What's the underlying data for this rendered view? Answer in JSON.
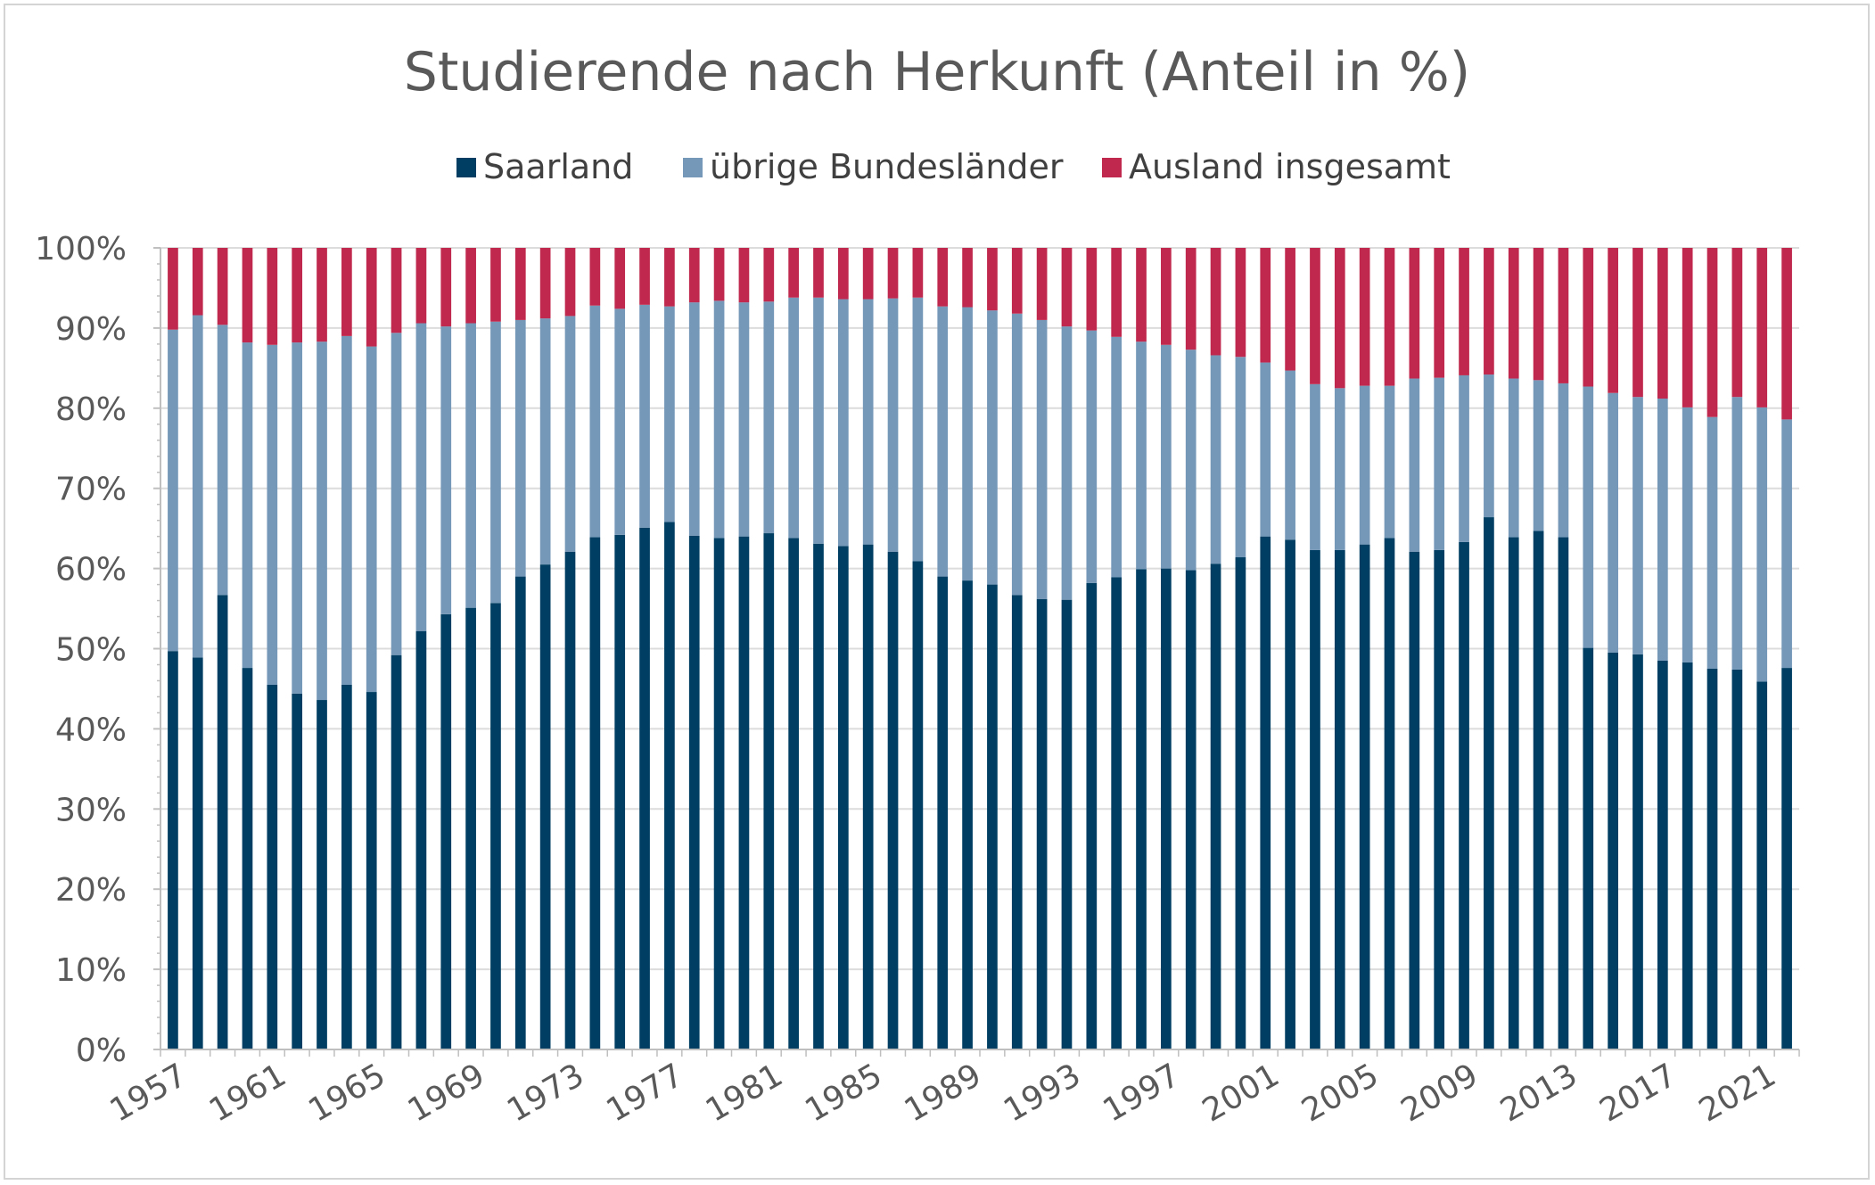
{
  "chart_data": {
    "type": "bar",
    "stacked": true,
    "title": "Studierende nach Herkunft (Anteil in %)",
    "xlabel": "",
    "ylabel": "",
    "ylim": [
      0,
      100
    ],
    "yticks": [
      "0%",
      "10%",
      "20%",
      "30%",
      "40%",
      "50%",
      "60%",
      "70%",
      "80%",
      "90%",
      "100%"
    ],
    "x_tick_labels": [
      "1957",
      "1961",
      "1965",
      "1969",
      "1973",
      "1977",
      "1981",
      "1985",
      "1989",
      "1993",
      "1997",
      "2001",
      "2005",
      "2009",
      "2013",
      "2017",
      "2021"
    ],
    "legend_position": "top",
    "categories": [
      "1957",
      "1958",
      "1959",
      "1960",
      "1961",
      "1962",
      "1963",
      "1964",
      "1965",
      "1966",
      "1967",
      "1968",
      "1969",
      "1970",
      "1971",
      "1972",
      "1973",
      "1974",
      "1975",
      "1976",
      "1977",
      "1978",
      "1979",
      "1980",
      "1981",
      "1982",
      "1983",
      "1984",
      "1985",
      "1986",
      "1987",
      "1988",
      "1989",
      "1990",
      "1991",
      "1992",
      "1993",
      "1994",
      "1995",
      "1996",
      "1997",
      "1998",
      "1999",
      "2000",
      "2001",
      "2002",
      "2003",
      "2004",
      "2005",
      "2006",
      "2007",
      "2008",
      "2009",
      "2010",
      "2011",
      "2012",
      "2013",
      "2014",
      "2015",
      "2016",
      "2017",
      "2018",
      "2019",
      "2020",
      "2021",
      "2022"
    ],
    "series": [
      {
        "name": "Saarland",
        "color": "#003f63",
        "values": [
          49.7,
          48.9,
          56.7,
          47.6,
          45.5,
          44.4,
          43.6,
          45.5,
          44.6,
          49.2,
          52.2,
          54.3,
          55.1,
          55.7,
          59.0,
          60.5,
          62.1,
          63.9,
          64.2,
          65.1,
          65.8,
          64.1,
          63.8,
          64.0,
          64.4,
          63.8,
          63.1,
          62.8,
          63.0,
          62.1,
          60.9,
          59.0,
          58.5,
          58.0,
          56.7,
          56.2,
          56.1,
          58.2,
          58.9,
          59.9,
          60.0,
          59.8,
          60.6,
          61.4,
          64.0,
          63.6,
          62.3,
          62.3,
          63.0,
          63.8,
          62.1,
          62.3,
          63.3,
          66.4,
          63.9,
          64.7,
          63.9,
          50.1,
          49.5,
          49.3,
          48.5,
          48.3,
          47.5,
          47.4,
          45.9,
          47.6
        ]
      },
      {
        "name": "übrige Bundesländer",
        "color": "#7598b9",
        "values": [
          40.1,
          42.7,
          33.7,
          40.6,
          42.4,
          43.8,
          44.7,
          43.5,
          43.1,
          40.2,
          38.4,
          35.9,
          35.5,
          35.1,
          32.0,
          30.7,
          29.4,
          28.9,
          28.2,
          27.8,
          26.9,
          29.1,
          29.6,
          29.2,
          28.9,
          30.0,
          30.7,
          30.8,
          30.6,
          31.6,
          32.9,
          33.7,
          34.1,
          34.2,
          35.1,
          34.8,
          34.1,
          31.5,
          30.0,
          28.4,
          27.9,
          27.5,
          26.0,
          25.0,
          21.7,
          21.1,
          20.7,
          20.2,
          19.8,
          19.0,
          21.6,
          21.5,
          20.8,
          17.8,
          19.8,
          18.8,
          19.2,
          32.6,
          32.4,
          32.1,
          32.7,
          31.8,
          31.4,
          34.0,
          34.2,
          31.0
        ]
      },
      {
        "name": "Ausland insgesamt",
        "color": "#c0294d",
        "values": [
          10.2,
          8.4,
          9.6,
          11.8,
          12.1,
          11.8,
          11.7,
          11.0,
          12.3,
          10.6,
          9.4,
          9.8,
          9.4,
          9.2,
          9.0,
          8.8,
          8.5,
          7.2,
          7.6,
          7.1,
          7.3,
          6.8,
          6.6,
          6.8,
          6.7,
          6.2,
          6.2,
          6.4,
          6.4,
          6.3,
          6.2,
          7.3,
          7.4,
          7.8,
          8.2,
          9.0,
          9.8,
          10.3,
          11.1,
          11.7,
          12.1,
          12.7,
          13.4,
          13.6,
          14.3,
          15.3,
          17.0,
          17.5,
          17.2,
          17.2,
          16.3,
          16.2,
          15.9,
          15.8,
          16.3,
          16.5,
          16.9,
          17.3,
          18.1,
          18.6,
          18.8,
          19.9,
          21.1,
          18.6,
          19.9,
          21.4
        ]
      }
    ]
  }
}
